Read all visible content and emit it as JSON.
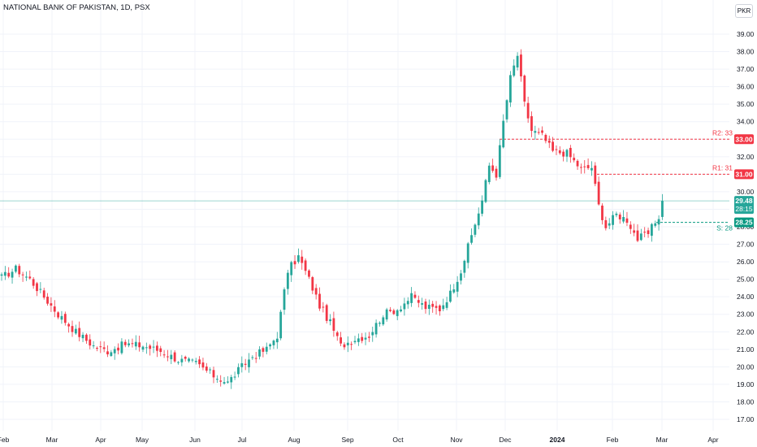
{
  "header": {
    "title": "NATIONAL BANK OF PAKISTAN, 1D, PSX",
    "currency": "PKR"
  },
  "colors": {
    "up": "#26a69a",
    "down": "#f23645",
    "resistance": "#f23645",
    "support": "#089981",
    "last_price": "#26a69a",
    "grid": "#f0f3fa"
  },
  "chart_data": {
    "type": "candlestick",
    "x_axis": {
      "tick_labels": [
        "Feb",
        "Mar",
        "Apr",
        "May",
        "Jun",
        "Jul",
        "Aug",
        "Sep",
        "Oct",
        "Nov",
        "Dec",
        "2024",
        "Feb",
        "Mar",
        "Apr"
      ],
      "bold_labels": [
        "2024"
      ]
    },
    "y_axis": {
      "range": [
        16.5,
        40.0
      ],
      "ticks": [
        17,
        18,
        19,
        20,
        21,
        22,
        23,
        24,
        25,
        26,
        27,
        28,
        29,
        30,
        31,
        32,
        33,
        34,
        35,
        36,
        37,
        38,
        39
      ],
      "tick_labels": [
        "17.00",
        "18.00",
        "19.00",
        "20.00",
        "21.00",
        "22.00",
        "23.00",
        "24.00",
        "25.00",
        "26.00",
        "27.00",
        "28.00",
        "29.00",
        "30.00",
        "31.00",
        "32.00",
        "33.00",
        "34.00",
        "35.00",
        "36.00",
        "37.00",
        "38.00",
        "39.00"
      ]
    },
    "levels": [
      {
        "name": "R2: 33",
        "value": 33,
        "tag": "33.00",
        "color": "#f23645"
      },
      {
        "name": "R1: 31",
        "value": 31,
        "tag": "31.00",
        "color": "#f23645"
      },
      {
        "name": "S: 28",
        "value": 28.25,
        "tag": "28.25",
        "color": "#089981"
      }
    ],
    "last_price": {
      "value": 29.48,
      "tag": "29.48",
      "countdown": "28:15"
    },
    "anchors": [
      {
        "i": 0,
        "c": 25.1
      },
      {
        "i": 4,
        "c": 25.6
      },
      {
        "i": 8,
        "c": 25.0
      },
      {
        "i": 12,
        "c": 24.0
      },
      {
        "i": 16,
        "c": 23.0
      },
      {
        "i": 21,
        "c": 22.0
      },
      {
        "i": 26,
        "c": 21.2
      },
      {
        "i": 30,
        "c": 20.9
      },
      {
        "i": 35,
        "c": 21.3
      },
      {
        "i": 40,
        "c": 21.2
      },
      {
        "i": 45,
        "c": 20.9
      },
      {
        "i": 50,
        "c": 20.4
      },
      {
        "i": 55,
        "c": 20.2
      },
      {
        "i": 60,
        "c": 19.5
      },
      {
        "i": 64,
        "c": 19.1
      },
      {
        "i": 67,
        "c": 19.8
      },
      {
        "i": 71,
        "c": 20.6
      },
      {
        "i": 75,
        "c": 21.0
      },
      {
        "i": 78,
        "c": 21.8
      },
      {
        "i": 81,
        "c": 25.5
      },
      {
        "i": 84,
        "c": 26.3
      },
      {
        "i": 87,
        "c": 25.0
      },
      {
        "i": 90,
        "c": 23.5
      },
      {
        "i": 93,
        "c": 22.5
      },
      {
        "i": 96,
        "c": 21.2
      },
      {
        "i": 100,
        "c": 21.6
      },
      {
        "i": 104,
        "c": 21.8
      },
      {
        "i": 108,
        "c": 23.0
      },
      {
        "i": 112,
        "c": 23.3
      },
      {
        "i": 116,
        "c": 24.0
      },
      {
        "i": 120,
        "c": 23.4
      },
      {
        "i": 124,
        "c": 23.3
      },
      {
        "i": 127,
        "c": 24.2
      },
      {
        "i": 130,
        "c": 25.5
      },
      {
        "i": 133,
        "c": 27.5
      },
      {
        "i": 136,
        "c": 29.5
      },
      {
        "i": 138,
        "c": 31.5
      },
      {
        "i": 140,
        "c": 31.0
      },
      {
        "i": 142,
        "c": 34.0
      },
      {
        "i": 144,
        "c": 36.5
      },
      {
        "i": 146,
        "c": 37.8
      },
      {
        "i": 148,
        "c": 35.0
      },
      {
        "i": 150,
        "c": 33.5
      },
      {
        "i": 153,
        "c": 33.2
      },
      {
        "i": 156,
        "c": 32.3
      },
      {
        "i": 160,
        "c": 32.2
      },
      {
        "i": 164,
        "c": 31.3
      },
      {
        "i": 167,
        "c": 31.4
      },
      {
        "i": 169,
        "c": 29.2
      },
      {
        "i": 171,
        "c": 28.0
      },
      {
        "i": 174,
        "c": 28.7
      },
      {
        "i": 177,
        "c": 28.4
      },
      {
        "i": 180,
        "c": 27.3
      },
      {
        "i": 183,
        "c": 27.6
      },
      {
        "i": 186,
        "c": 28.6
      },
      {
        "i": 187,
        "c": 29.48
      }
    ]
  }
}
